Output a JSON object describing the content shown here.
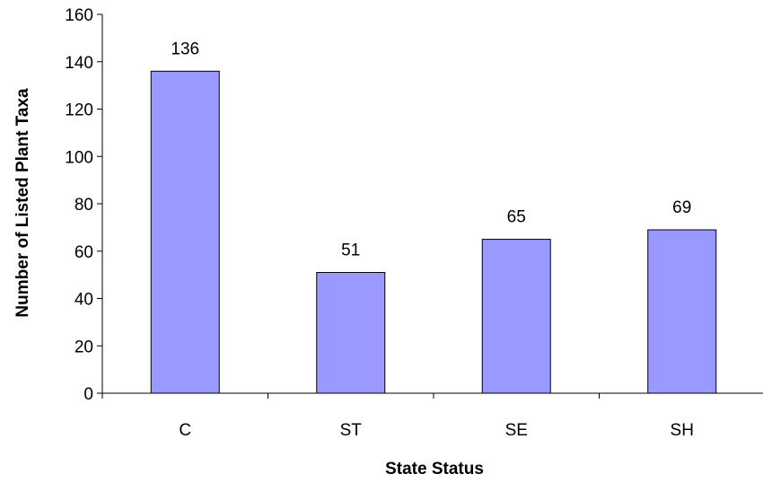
{
  "chart_data": {
    "type": "bar",
    "title": "",
    "xlabel": "State Status",
    "ylabel": "Number of Listed Plant Taxa",
    "categories": [
      "C",
      "ST",
      "SE",
      "SH"
    ],
    "values": [
      136,
      51,
      65,
      69
    ],
    "data_labels": [
      "136",
      "51",
      "65",
      "69"
    ],
    "ylim": [
      0,
      160
    ],
    "yticks": [
      0,
      20,
      40,
      60,
      80,
      100,
      120,
      140,
      160
    ],
    "ytick_labels": [
      "0",
      "20",
      "40",
      "60",
      "80",
      "100",
      "120",
      "140",
      "160"
    ],
    "grid": false,
    "legend": "none",
    "colors": {
      "bar_fill": "#9999ff",
      "bar_stroke": "#000000",
      "axis": "#000000"
    }
  }
}
